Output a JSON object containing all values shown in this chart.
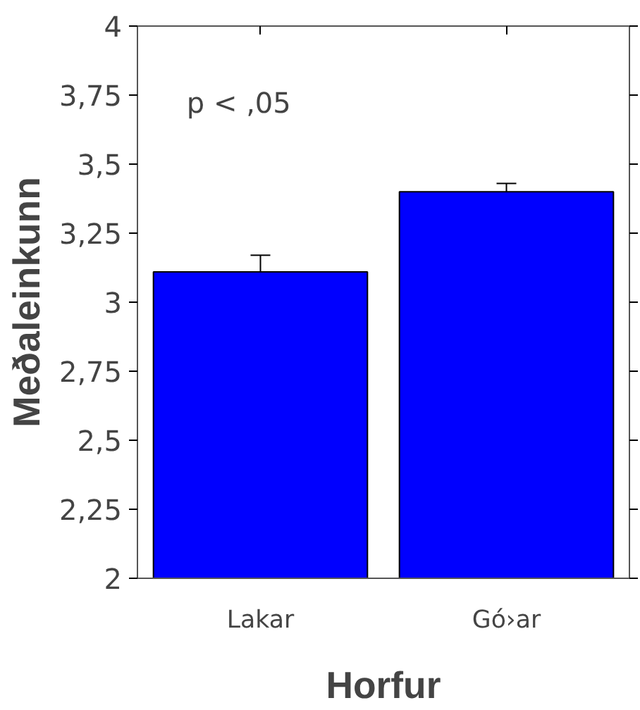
{
  "chart_data": {
    "type": "bar",
    "xlabel": "Horfur",
    "ylabel": "Meðaleinkunn",
    "categories": [
      "Lakar",
      "Gó›ar"
    ],
    "values": [
      3.11,
      3.4
    ],
    "errors": [
      0.06,
      0.03
    ],
    "color": "#0000ff",
    "ylim": [
      2,
      4
    ],
    "yticks": [
      2,
      {
        "value": 2.25,
        "label": "2,25"
      },
      {
        "value": 2.5,
        "label": "2,5"
      },
      {
        "value": 2.75,
        "label": "2,75"
      },
      3,
      {
        "value": 3.25,
        "label": "3,25"
      },
      {
        "value": 3.5,
        "label": "3,5"
      },
      {
        "value": 3.75,
        "label": "3,75"
      },
      4
    ],
    "annotations": [
      "p < ,05"
    ],
    "grid": false
  }
}
